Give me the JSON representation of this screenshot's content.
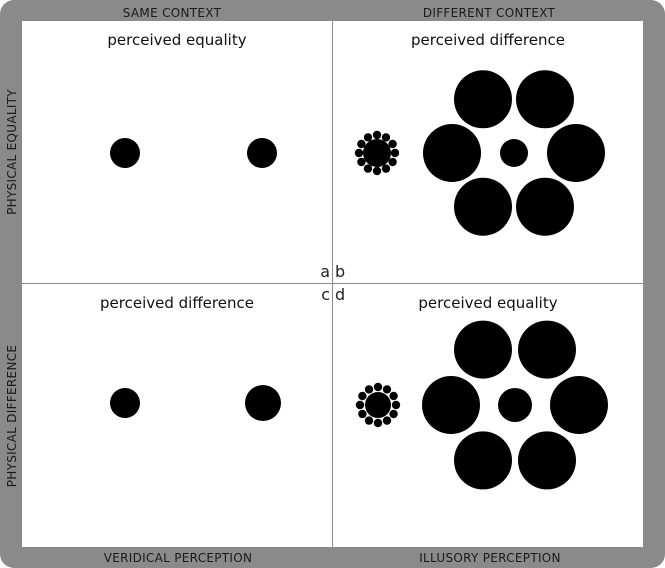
{
  "headers": {
    "top_left": "SAME CONTEXT",
    "top_right": "DIFFERENT CONTEXT",
    "bottom_left": "VERIDICAL PERCEPTION",
    "bottom_right": "ILLUSORY PERCEPTION",
    "side_top": "PHYSICAL EQUALITY",
    "side_bottom": "PHYSICAL DIFFERENCE"
  },
  "panels": {
    "a": {
      "letter": "a",
      "title": "perceived equality"
    },
    "b": {
      "letter": "b",
      "title": "perceived difference"
    },
    "c": {
      "letter": "c",
      "title": "perceived difference"
    },
    "d": {
      "letter": "d",
      "title": "perceived equality"
    }
  },
  "colors": {
    "frame": "#8a8a8a",
    "panel": "#ffffff",
    "dots": "#000000"
  }
}
